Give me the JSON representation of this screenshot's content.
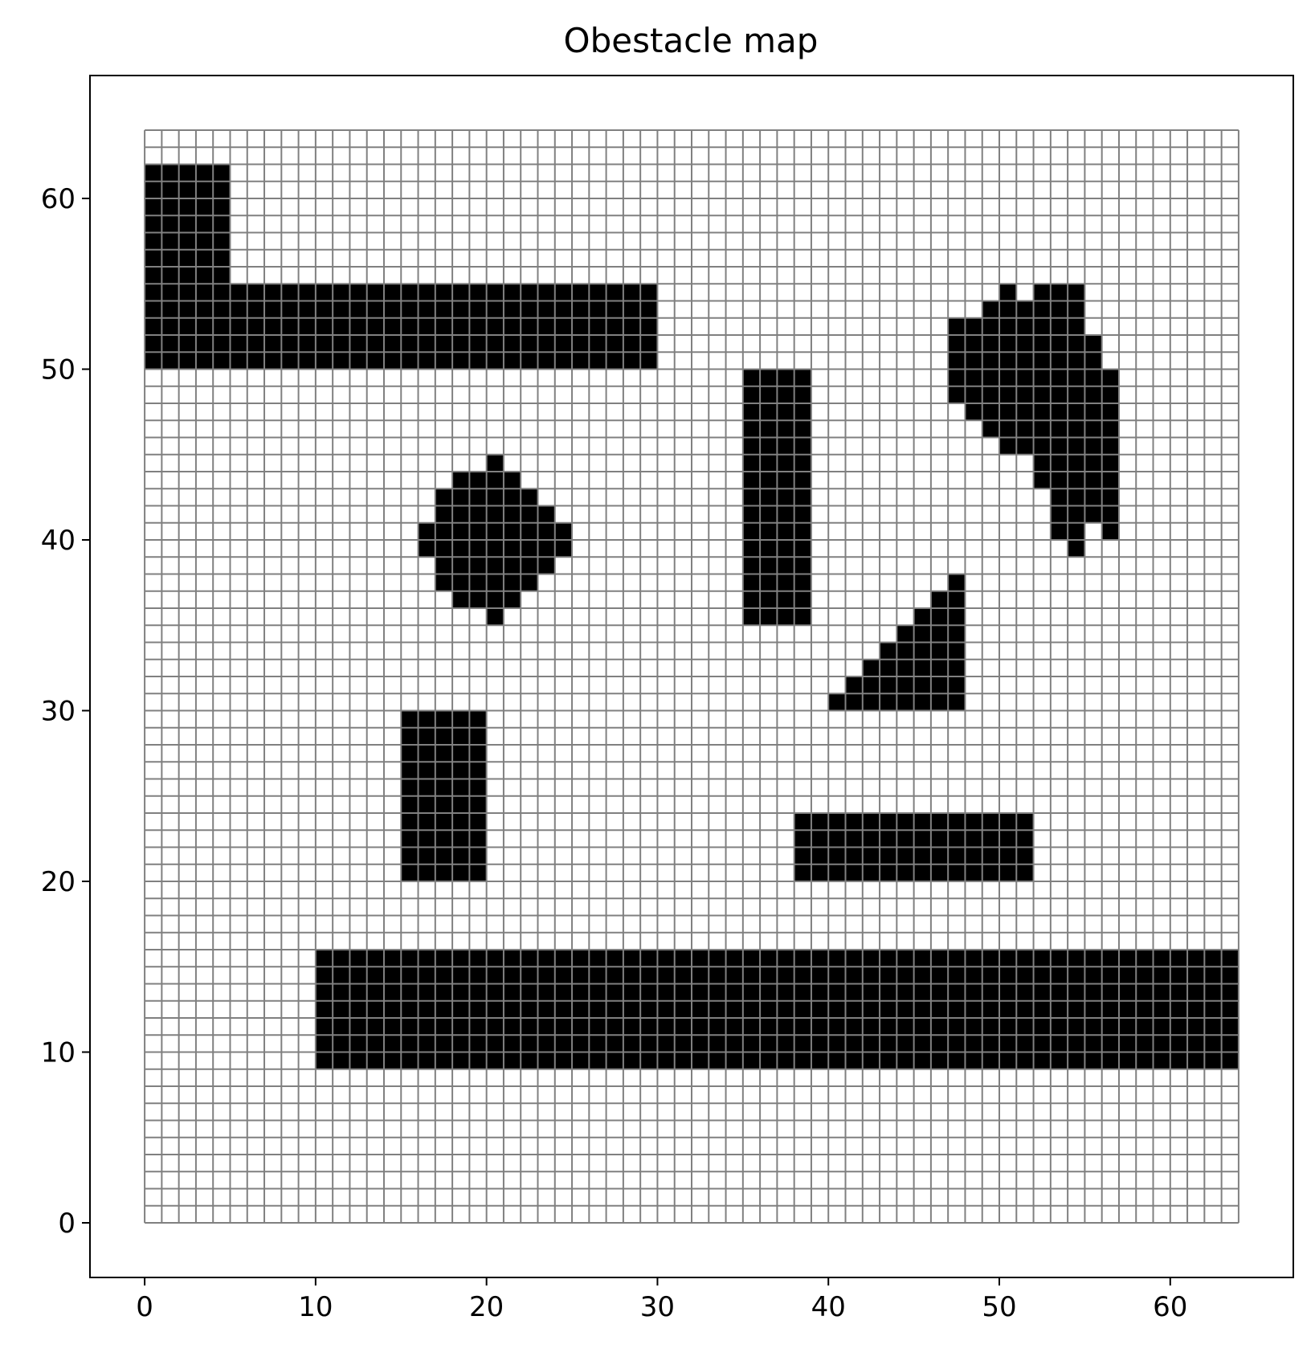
{
  "chart_data": {
    "type": "heatmap",
    "title": "Obestacle map",
    "xlabel": "",
    "ylabel": "",
    "grid_size": 64,
    "xlim": [
      -3.2,
      67.2
    ],
    "ylim": [
      -3.2,
      67.2
    ],
    "xticks": [
      0,
      10,
      20,
      30,
      40,
      50,
      60
    ],
    "yticks": [
      0,
      10,
      20,
      30,
      40,
      50,
      60
    ],
    "cell_colors": {
      "free": "#ffffff",
      "obstacle": "#000000",
      "grid_line": "#808080"
    },
    "obstacle_rects": [
      {
        "x": [
          0,
          5
        ],
        "y": [
          50,
          62
        ]
      },
      {
        "x": [
          5,
          30
        ],
        "y": [
          50,
          55
        ]
      },
      {
        "x": [
          35,
          39
        ],
        "y": [
          35,
          50
        ]
      },
      {
        "x": [
          15,
          20
        ],
        "y": [
          20,
          30
        ]
      },
      {
        "x": [
          38,
          52
        ],
        "y": [
          20,
          24
        ]
      },
      {
        "x": [
          10,
          64
        ],
        "y": [
          9,
          16
        ]
      }
    ],
    "obstacle_cells": [
      [
        20,
        44
      ],
      [
        18,
        43
      ],
      [
        19,
        43
      ],
      [
        20,
        43
      ],
      [
        21,
        43
      ],
      [
        17,
        42
      ],
      [
        18,
        42
      ],
      [
        19,
        42
      ],
      [
        20,
        42
      ],
      [
        21,
        42
      ],
      [
        22,
        42
      ],
      [
        17,
        41
      ],
      [
        18,
        41
      ],
      [
        19,
        41
      ],
      [
        20,
        41
      ],
      [
        21,
        41
      ],
      [
        22,
        41
      ],
      [
        23,
        41
      ],
      [
        16,
        40
      ],
      [
        17,
        40
      ],
      [
        18,
        40
      ],
      [
        19,
        40
      ],
      [
        20,
        40
      ],
      [
        21,
        40
      ],
      [
        22,
        40
      ],
      [
        23,
        40
      ],
      [
        24,
        40
      ],
      [
        16,
        39
      ],
      [
        17,
        39
      ],
      [
        18,
        39
      ],
      [
        19,
        39
      ],
      [
        20,
        39
      ],
      [
        21,
        39
      ],
      [
        22,
        39
      ],
      [
        23,
        39
      ],
      [
        24,
        39
      ],
      [
        17,
        38
      ],
      [
        18,
        38
      ],
      [
        19,
        38
      ],
      [
        20,
        38
      ],
      [
        21,
        38
      ],
      [
        22,
        38
      ],
      [
        23,
        38
      ],
      [
        17,
        37
      ],
      [
        18,
        37
      ],
      [
        19,
        37
      ],
      [
        20,
        37
      ],
      [
        21,
        37
      ],
      [
        22,
        37
      ],
      [
        18,
        36
      ],
      [
        19,
        36
      ],
      [
        20,
        36
      ],
      [
        21,
        36
      ],
      [
        20,
        35
      ],
      [
        47,
        37
      ],
      [
        46,
        36
      ],
      [
        47,
        36
      ],
      [
        45,
        35
      ],
      [
        46,
        35
      ],
      [
        47,
        35
      ],
      [
        44,
        34
      ],
      [
        45,
        34
      ],
      [
        46,
        34
      ],
      [
        47,
        34
      ],
      [
        43,
        33
      ],
      [
        44,
        33
      ],
      [
        45,
        33
      ],
      [
        46,
        33
      ],
      [
        47,
        33
      ],
      [
        42,
        32
      ],
      [
        43,
        32
      ],
      [
        44,
        32
      ],
      [
        45,
        32
      ],
      [
        46,
        32
      ],
      [
        47,
        32
      ],
      [
        41,
        31
      ],
      [
        42,
        31
      ],
      [
        43,
        31
      ],
      [
        44,
        31
      ],
      [
        45,
        31
      ],
      [
        46,
        31
      ],
      [
        47,
        31
      ],
      [
        40,
        30
      ],
      [
        41,
        30
      ],
      [
        42,
        30
      ],
      [
        43,
        30
      ],
      [
        44,
        30
      ],
      [
        45,
        30
      ],
      [
        46,
        30
      ],
      [
        47,
        30
      ],
      [
        50,
        54
      ],
      [
        52,
        54
      ],
      [
        53,
        54
      ],
      [
        54,
        54
      ],
      [
        49,
        53
      ],
      [
        50,
        53
      ],
      [
        51,
        53
      ],
      [
        52,
        53
      ],
      [
        53,
        53
      ],
      [
        54,
        53
      ],
      [
        47,
        52
      ],
      [
        48,
        52
      ],
      [
        49,
        52
      ],
      [
        50,
        52
      ],
      [
        51,
        52
      ],
      [
        52,
        52
      ],
      [
        53,
        52
      ],
      [
        54,
        52
      ],
      [
        47,
        51
      ],
      [
        48,
        51
      ],
      [
        49,
        51
      ],
      [
        50,
        51
      ],
      [
        51,
        51
      ],
      [
        52,
        51
      ],
      [
        53,
        51
      ],
      [
        54,
        51
      ],
      [
        55,
        51
      ],
      [
        47,
        50
      ],
      [
        48,
        50
      ],
      [
        49,
        50
      ],
      [
        50,
        50
      ],
      [
        51,
        50
      ],
      [
        52,
        50
      ],
      [
        53,
        50
      ],
      [
        54,
        50
      ],
      [
        55,
        50
      ],
      [
        47,
        49
      ],
      [
        48,
        49
      ],
      [
        49,
        49
      ],
      [
        50,
        49
      ],
      [
        51,
        49
      ],
      [
        52,
        49
      ],
      [
        53,
        49
      ],
      [
        54,
        49
      ],
      [
        55,
        49
      ],
      [
        56,
        49
      ],
      [
        47,
        48
      ],
      [
        48,
        48
      ],
      [
        49,
        48
      ],
      [
        50,
        48
      ],
      [
        51,
        48
      ],
      [
        52,
        48
      ],
      [
        53,
        48
      ],
      [
        54,
        48
      ],
      [
        55,
        48
      ],
      [
        56,
        48
      ],
      [
        48,
        47
      ],
      [
        49,
        47
      ],
      [
        50,
        47
      ],
      [
        51,
        47
      ],
      [
        52,
        47
      ],
      [
        53,
        47
      ],
      [
        54,
        47
      ],
      [
        55,
        47
      ],
      [
        56,
        47
      ],
      [
        49,
        46
      ],
      [
        50,
        46
      ],
      [
        51,
        46
      ],
      [
        52,
        46
      ],
      [
        53,
        46
      ],
      [
        54,
        46
      ],
      [
        55,
        46
      ],
      [
        56,
        46
      ],
      [
        50,
        45
      ],
      [
        51,
        45
      ],
      [
        52,
        45
      ],
      [
        53,
        45
      ],
      [
        54,
        45
      ],
      [
        55,
        45
      ],
      [
        56,
        45
      ],
      [
        52,
        44
      ],
      [
        53,
        44
      ],
      [
        54,
        44
      ],
      [
        55,
        44
      ],
      [
        56,
        44
      ],
      [
        52,
        43
      ],
      [
        53,
        43
      ],
      [
        54,
        43
      ],
      [
        55,
        43
      ],
      [
        56,
        43
      ],
      [
        53,
        42
      ],
      [
        54,
        42
      ],
      [
        55,
        42
      ],
      [
        56,
        42
      ],
      [
        53,
        41
      ],
      [
        54,
        41
      ],
      [
        55,
        41
      ],
      [
        56,
        41
      ],
      [
        53,
        40
      ],
      [
        54,
        40
      ],
      [
        56,
        40
      ],
      [
        54,
        39
      ]
    ]
  }
}
